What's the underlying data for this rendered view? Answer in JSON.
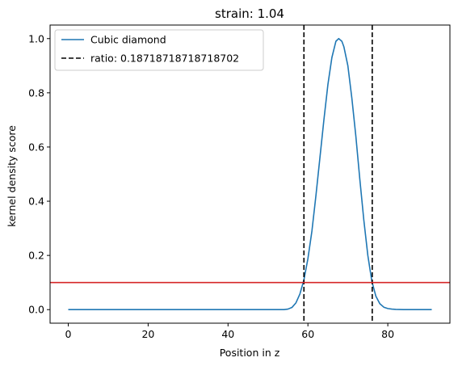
{
  "chart_data": {
    "type": "line",
    "title": "strain: 1.04",
    "xlabel": "Position in z",
    "ylabel": "kernel density score",
    "xlim": [
      -4.55,
      95.55
    ],
    "ylim": [
      -0.05,
      1.05
    ],
    "xticks": [
      0,
      20,
      40,
      60,
      80
    ],
    "xtick_labels": [
      "0",
      "20",
      "40",
      "60",
      "80"
    ],
    "yticks": [
      0.0,
      0.2,
      0.4,
      0.6,
      0.8,
      1.0
    ],
    "ytick_labels": [
      "0.0",
      "0.2",
      "0.4",
      "0.6",
      "0.8",
      "1.0"
    ],
    "grid": false,
    "legend_position": "top-left",
    "series": [
      {
        "name": "Cubic diamond",
        "color": "#1f77b4",
        "style": "solid",
        "x": [
          0,
          5,
          10,
          15,
          20,
          25,
          30,
          35,
          40,
          45,
          50,
          52,
          54,
          55,
          56,
          57,
          58,
          59,
          60,
          61,
          62,
          63,
          64,
          65,
          66,
          67,
          67.7,
          68.5,
          69,
          70,
          71,
          72,
          73,
          74,
          75,
          76,
          77,
          78,
          79,
          80,
          81,
          82,
          84,
          86,
          88,
          91
        ],
        "y": [
          0.0,
          0.0,
          0.0,
          0.0,
          0.0,
          0.0,
          0.0,
          0.0,
          0.0,
          0.0,
          0.0,
          0.0,
          0.0,
          0.002,
          0.008,
          0.025,
          0.058,
          0.11,
          0.188,
          0.29,
          0.42,
          0.56,
          0.7,
          0.83,
          0.93,
          0.99,
          1.0,
          0.99,
          0.97,
          0.9,
          0.78,
          0.64,
          0.48,
          0.33,
          0.2,
          0.105,
          0.05,
          0.022,
          0.009,
          0.004,
          0.002,
          0.001,
          0.0,
          0.0,
          0.0,
          0.0
        ]
      },
      {
        "name": "ratio: 0.18718718718718702",
        "color": "#000000",
        "style": "dashed",
        "vlines": [
          59.0,
          76.1
        ]
      }
    ],
    "hlines": [
      {
        "y": 0.1,
        "color": "#d62728"
      }
    ]
  }
}
